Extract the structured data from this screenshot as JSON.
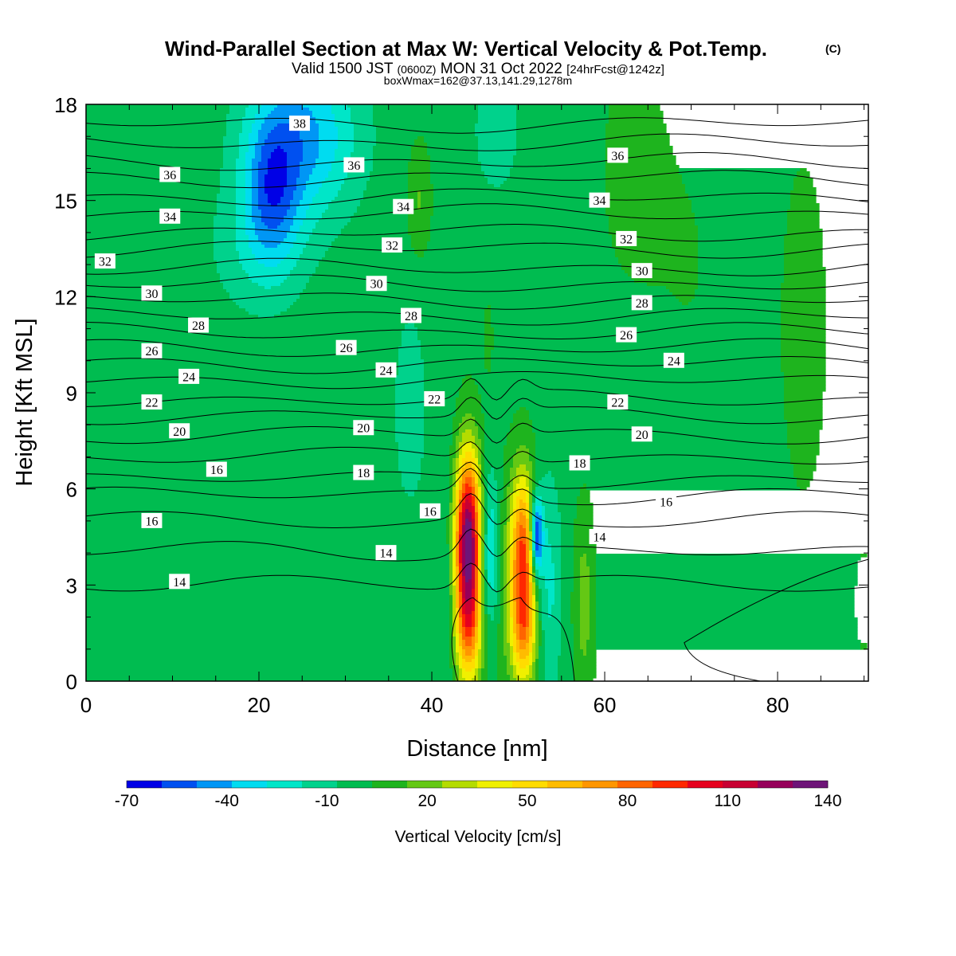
{
  "chart_data": {
    "type": "heatmap",
    "title": "Wind-Parallel Section at Max W: Vertical Velocity & Pot.Temp.",
    "copyright": "(C)",
    "subtitle": {
      "prefix": "Valid 1500 JST",
      "utc": "(0600Z)",
      "date": "MON 31 Oct 2022",
      "forecast": "[24hrFcst@1242z]"
    },
    "subtitle2": "boxWmax=162@37.13,141.29,1278m",
    "xlabel": "Distance [nm]",
    "ylabel": "Height [Kft MSL]",
    "xlim": [
      0,
      90.5
    ],
    "ylim": [
      0,
      18
    ],
    "xticks": [
      0,
      20,
      40,
      60,
      80
    ],
    "yticks": [
      0,
      3,
      6,
      9,
      12,
      15,
      18
    ],
    "colorbar": {
      "label": "Vertical Velocity [cm/s]",
      "ticks": [
        -70,
        -40,
        -10,
        20,
        50,
        80,
        110,
        140
      ],
      "range": [
        -70,
        140
      ],
      "step": 10,
      "colors": [
        "#0000e6",
        "#0050f0",
        "#0096f5",
        "#00dcf0",
        "#00e6c8",
        "#00d28c",
        "#00bc50",
        "#1eb41e",
        "#64c814",
        "#b4dc00",
        "#f0f000",
        "#ffdc00",
        "#ffbc00",
        "#ff9600",
        "#ff6400",
        "#ff2800",
        "#e6001e",
        "#c80032",
        "#96005a",
        "#6e1478"
      ]
    },
    "background_value": -3,
    "w_features": [
      {
        "x": 44.2,
        "z": 4.3,
        "sx": 1.1,
        "sz": 1.9,
        "w": 135
      },
      {
        "x": 50.5,
        "z": 3.9,
        "sx": 1.05,
        "sz": 1.8,
        "w": 85
      },
      {
        "x": 44.2,
        "z": 1.4,
        "sx": 1.2,
        "sz": 1.2,
        "w": 45
      },
      {
        "x": 50.6,
        "z": 1.4,
        "sx": 1.1,
        "sz": 1.2,
        "w": 45
      },
      {
        "x": 52.1,
        "z": 4.5,
        "sx": 0.5,
        "sz": 0.9,
        "w": -70
      },
      {
        "x": 46.6,
        "z": 4.0,
        "sx": 0.9,
        "sz": 1.8,
        "w": -35
      },
      {
        "x": 53.5,
        "z": 3.0,
        "sx": 1.1,
        "sz": 2.5,
        "w": -20
      },
      {
        "x": 57.6,
        "z": 2.4,
        "sx": 0.8,
        "sz": 2.0,
        "w": 18
      },
      {
        "x": 48.0,
        "z": 3.0,
        "sx": 0.8,
        "sz": 2.5,
        "w": 8
      },
      {
        "x": 42.0,
        "z": 3.0,
        "sx": 1.0,
        "sz": 3.0,
        "w": -12
      },
      {
        "x": 25.0,
        "z": 17.0,
        "sx": 4.5,
        "sz": 1.8,
        "w": -40
      },
      {
        "x": 21.5,
        "z": 15.3,
        "sx": 2.2,
        "sz": 1.6,
        "w": -35
      },
      {
        "x": 20.0,
        "z": 13.5,
        "sx": 4.0,
        "sz": 1.5,
        "w": -15
      },
      {
        "x": 47.5,
        "z": 17.2,
        "sx": 2.0,
        "sz": 1.5,
        "w": -14
      },
      {
        "x": 38.5,
        "z": 15.0,
        "sx": 0.9,
        "sz": 1.2,
        "w": 14
      },
      {
        "x": 46.5,
        "z": 10.7,
        "sx": 0.3,
        "sz": 0.6,
        "w": 14
      },
      {
        "x": 37.5,
        "z": 8.5,
        "sx": 1.5,
        "sz": 2.5,
        "w": -13
      },
      {
        "x": 63.0,
        "z": 16.0,
        "sx": 3.0,
        "sz": 3.0,
        "w": 5
      },
      {
        "x": 83.0,
        "z": 11.0,
        "sx": 2.5,
        "sz": 5.0,
        "w": 5
      },
      {
        "x": 70.0,
        "z": 13.0,
        "sx": 3.5,
        "sz": 4.0,
        "w": 3
      },
      {
        "x": 90.0,
        "z": 2.5,
        "sx": 1.0,
        "sz": 1.5,
        "w": 5
      }
    ],
    "theta_contours": [
      {
        "base": 3.0,
        "value": "14"
      },
      {
        "base": 4.0,
        "value": ""
      },
      {
        "base": 5.0,
        "value": "16"
      },
      {
        "base": 5.8,
        "value": ""
      },
      {
        "base": 6.3,
        "value": "18"
      },
      {
        "base": 7.0,
        "value": ""
      },
      {
        "base": 7.7,
        "value": "20"
      },
      {
        "base": 8.3,
        "value": ""
      },
      {
        "base": 8.8,
        "value": "22"
      },
      {
        "base": 9.4,
        "value": ""
      },
      {
        "base": 9.9,
        "value": "24"
      },
      {
        "base": 10.4,
        "value": ""
      },
      {
        "base": 10.9,
        "value": "26"
      },
      {
        "base": 11.4,
        "value": ""
      },
      {
        "base": 11.9,
        "value": "28"
      },
      {
        "base": 12.4,
        "value": ""
      },
      {
        "base": 12.9,
        "value": "30"
      },
      {
        "base": 13.5,
        "value": ""
      },
      {
        "base": 14.0,
        "value": "32"
      },
      {
        "base": 14.6,
        "value": ""
      },
      {
        "base": 15.1,
        "value": "34"
      },
      {
        "base": 15.7,
        "value": ""
      },
      {
        "base": 16.2,
        "value": "36"
      },
      {
        "base": 16.8,
        "value": ""
      },
      {
        "base": 17.4,
        "value": "38"
      }
    ],
    "contour_labels": [
      {
        "text": "38",
        "x": 24.7,
        "z": 17.4
      },
      {
        "text": "36",
        "x": 9.7,
        "z": 15.8
      },
      {
        "text": "36",
        "x": 31.0,
        "z": 16.1
      },
      {
        "text": "36",
        "x": 61.5,
        "z": 16.4
      },
      {
        "text": "34",
        "x": 9.7,
        "z": 14.5
      },
      {
        "text": "34",
        "x": 36.7,
        "z": 14.8
      },
      {
        "text": "34",
        "x": 59.4,
        "z": 15.0
      },
      {
        "text": "32",
        "x": 2.2,
        "z": 13.1
      },
      {
        "text": "32",
        "x": 35.4,
        "z": 13.6
      },
      {
        "text": "32",
        "x": 62.5,
        "z": 13.8
      },
      {
        "text": "30",
        "x": 7.6,
        "z": 12.1
      },
      {
        "text": "30",
        "x": 33.6,
        "z": 12.4
      },
      {
        "text": "30",
        "x": 64.3,
        "z": 12.8
      },
      {
        "text": "28",
        "x": 13.0,
        "z": 11.1
      },
      {
        "text": "28",
        "x": 37.6,
        "z": 11.4
      },
      {
        "text": "28",
        "x": 64.3,
        "z": 11.8
      },
      {
        "text": "26",
        "x": 7.6,
        "z": 10.3
      },
      {
        "text": "26",
        "x": 30.1,
        "z": 10.4
      },
      {
        "text": "26",
        "x": 62.5,
        "z": 10.8
      },
      {
        "text": "24",
        "x": 11.9,
        "z": 9.5
      },
      {
        "text": "24",
        "x": 34.7,
        "z": 9.7
      },
      {
        "text": "24",
        "x": 68.0,
        "z": 10.0
      },
      {
        "text": "22",
        "x": 7.6,
        "z": 8.7
      },
      {
        "text": "22",
        "x": 40.3,
        "z": 8.8
      },
      {
        "text": "22",
        "x": 61.5,
        "z": 8.7
      },
      {
        "text": "20",
        "x": 10.8,
        "z": 7.8
      },
      {
        "text": "20",
        "x": 32.1,
        "z": 7.9
      },
      {
        "text": "20",
        "x": 64.3,
        "z": 7.7
      },
      {
        "text": "18",
        "x": 32.1,
        "z": 6.5
      },
      {
        "text": "18",
        "x": 57.1,
        "z": 6.8
      },
      {
        "text": "16",
        "x": 15.1,
        "z": 6.6
      },
      {
        "text": "16",
        "x": 7.6,
        "z": 5.0
      },
      {
        "text": "16",
        "x": 39.8,
        "z": 5.3
      },
      {
        "text": "16",
        "x": 67.1,
        "z": 5.6
      },
      {
        "text": "14",
        "x": 34.7,
        "z": 4.0
      },
      {
        "text": "14",
        "x": 59.4,
        "z": 4.5
      },
      {
        "text": "14",
        "x": 10.8,
        "z": 3.1
      }
    ]
  }
}
